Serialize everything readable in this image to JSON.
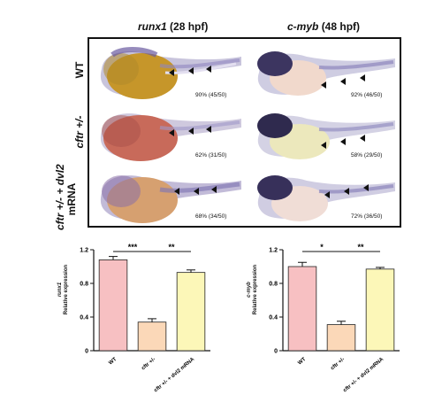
{
  "figure": {
    "columns": [
      {
        "gene": "runx1",
        "stage": "(28 hpf)"
      },
      {
        "gene": "c-myb",
        "stage": "(48 hpf)"
      }
    ],
    "rows": [
      {
        "label": "WT",
        "label_italic": false
      },
      {
        "label": "cftr +/-",
        "label_italic": true
      },
      {
        "label_part1": "cftr +/- +",
        "label_part2": "dvl2",
        "label_part3": "mRNA"
      }
    ],
    "percentages": [
      [
        "90% (45/50)",
        "92% (46/50)"
      ],
      [
        "62% (31/50)",
        "58% (29/50)"
      ],
      [
        "68% (34/50)",
        "72% (36/50)"
      ]
    ]
  },
  "chart_data": [
    {
      "type": "bar",
      "ylabel_gene": "runx1",
      "ylabel": "Relative expression",
      "categories": [
        "WT",
        "cftr +/-",
        "cftr +/- + dvl2 mRNA"
      ],
      "values": [
        1.08,
        0.34,
        0.93
      ],
      "errors": [
        0.04,
        0.04,
        0.03
      ],
      "ylim": [
        0,
        1.2
      ],
      "yticks": [
        "0",
        "0.4",
        "0.8",
        "1.2"
      ],
      "colors": [
        "#f7c0c2",
        "#fbd8b8",
        "#fcf7b8"
      ],
      "significance": [
        {
          "pair": [
            0,
            1
          ],
          "label": "***"
        },
        {
          "pair": [
            1,
            2
          ],
          "label": "**"
        }
      ]
    },
    {
      "type": "bar",
      "ylabel_gene": "c-myb",
      "ylabel": "Relative expression",
      "categories": [
        "WT",
        "cftr +/-",
        "cftr +/- + dvl2 mRNA"
      ],
      "values": [
        1.0,
        0.31,
        0.97
      ],
      "errors": [
        0.05,
        0.04,
        0.02
      ],
      "ylim": [
        0,
        1.2
      ],
      "yticks": [
        "0",
        "0.4",
        "0.8",
        "1.2"
      ],
      "colors": [
        "#f7c0c2",
        "#fbd8b8",
        "#fcf7b8"
      ],
      "significance": [
        {
          "pair": [
            0,
            1
          ],
          "label": "*"
        },
        {
          "pair": [
            1,
            2
          ],
          "label": "**"
        }
      ]
    }
  ]
}
